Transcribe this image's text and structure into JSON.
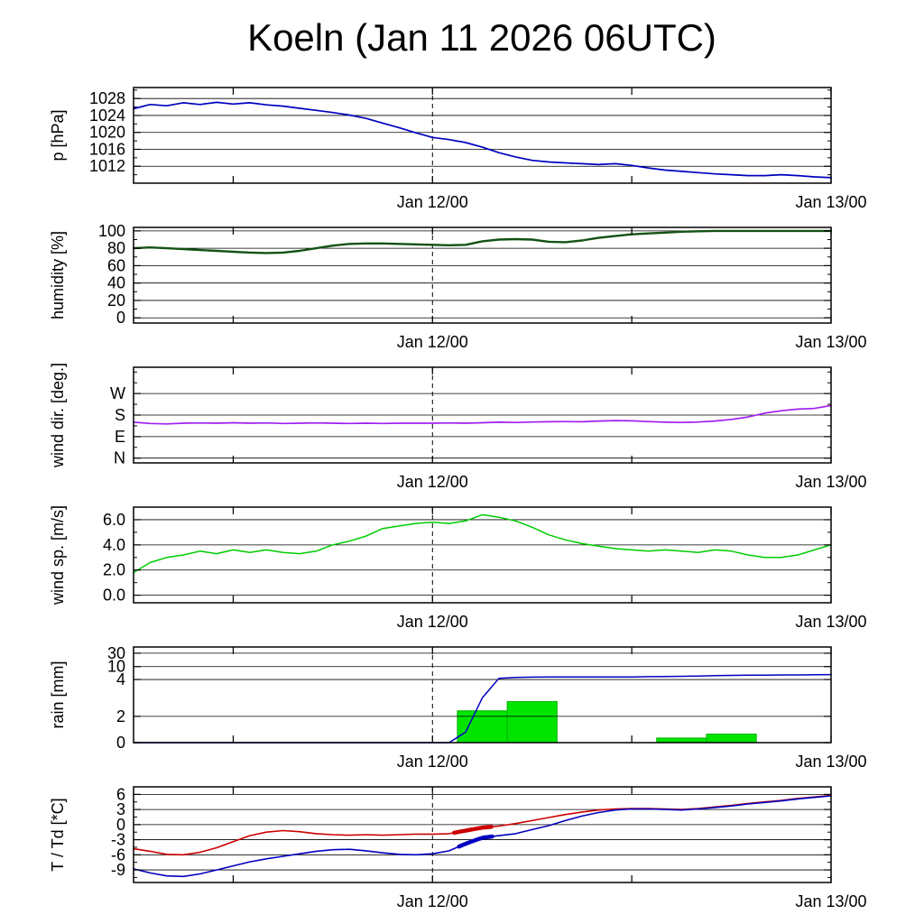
{
  "chart_data": {
    "type": "line",
    "title": "Koeln (Jan 11 2026 06UTC)",
    "x_axis": {
      "hours_total": 42,
      "major_tick_hours": [
        6,
        18,
        30,
        42
      ],
      "labels": [
        {
          "hour": 18,
          "text": "Jan 12/00"
        },
        {
          "hour": 42,
          "text": "Jan 13/00"
        }
      ],
      "dashed_line_hour": 18
    },
    "panels": [
      {
        "id": "pressure",
        "ylabel": "p [hPa]",
        "ymin": 1008,
        "ymax": 1030.6,
        "yticks": [
          {
            "value": 1012,
            "label": "1012"
          },
          {
            "value": 1016,
            "label": "1016"
          },
          {
            "value": 1020,
            "label": "1020"
          },
          {
            "value": 1024,
            "label": "1024"
          },
          {
            "value": 1028,
            "label": "1028"
          }
        ],
        "minor_ticks": [
          1010,
          1014,
          1018,
          1022,
          1026,
          1030
        ],
        "grid_values": [
          1012,
          1016,
          1020,
          1024,
          1028
        ],
        "series": [
          {
            "name": "pressure",
            "color": "#0000c0",
            "width": 1.7,
            "step_hours": 1,
            "values": [
              1025.6,
              1026.6,
              1026.3,
              1027.0,
              1026.6,
              1027.1,
              1026.7,
              1027.0,
              1026.5,
              1026.2,
              1025.7,
              1025.2,
              1024.7,
              1024.1,
              1023.3,
              1022.2,
              1021.1,
              1019.9,
              1018.8,
              1018.3,
              1017.6,
              1016.5,
              1015.2,
              1014.2,
              1013.4,
              1013.0,
              1012.8,
              1012.6,
              1012.4,
              1012.6,
              1012.2,
              1011.6,
              1011.1,
              1010.8,
              1010.5,
              1010.2,
              1010.0,
              1009.8,
              1009.8,
              1010.0,
              1009.8,
              1009.5,
              1009.3
            ]
          }
        ]
      },
      {
        "id": "humidity",
        "ylabel": "humidity [%]",
        "ymin": -6,
        "ymax": 104,
        "yticks": [
          {
            "value": 0,
            "label": "0"
          },
          {
            "value": 20,
            "label": "20"
          },
          {
            "value": 40,
            "label": "40"
          },
          {
            "value": 60,
            "label": "60"
          },
          {
            "value": 80,
            "label": "80"
          },
          {
            "value": 100,
            "label": "100"
          }
        ],
        "minor_ticks": [
          10,
          30,
          50,
          70,
          90
        ],
        "grid_values": [
          0,
          20,
          40,
          60,
          80,
          100
        ],
        "series": [
          {
            "name": "humidity",
            "color": "#145214",
            "width": 2.4,
            "step_hours": 1,
            "values": [
              80,
              81,
              80,
              79,
              78,
              77,
              76,
              75,
              74.5,
              75,
              77,
              80,
              83,
              85,
              85.5,
              85.5,
              85,
              84.5,
              84,
              83.5,
              84,
              88,
              90,
              90.5,
              90,
              87.5,
              87,
              89,
              92,
              94,
              96,
              97,
              98,
              99,
              99.5,
              100,
              100,
              100,
              100,
              100,
              100,
              100,
              100
            ]
          }
        ]
      },
      {
        "id": "wind-direction",
        "ylabel": "wind dir. [deg.]",
        "ymin": -20,
        "ymax": 380,
        "yticks": [
          {
            "value": 0,
            "label": "N"
          },
          {
            "value": 90,
            "label": "E"
          },
          {
            "value": 180,
            "label": "S"
          },
          {
            "value": 270,
            "label": "W"
          }
        ],
        "minor_ticks": [
          45,
          135,
          225,
          315,
          360
        ],
        "grid_values": [
          0,
          90,
          180,
          270
        ],
        "series": [
          {
            "name": "wind-direction",
            "color": "#a020f0",
            "width": 1.7,
            "step_hours": 1,
            "values": [
              150,
              145,
              143,
              146,
              147,
              146,
              148,
              146,
              147,
              145,
              146,
              147,
              146,
              145,
              146,
              145,
              146,
              146,
              146,
              147,
              146,
              148,
              150,
              149,
              151,
              152,
              153,
              152,
              155,
              157,
              156,
              153,
              150,
              149,
              151,
              155,
              162,
              172,
              188,
              198,
              205,
              208,
              220
            ]
          }
        ]
      },
      {
        "id": "wind-speed",
        "ylabel": "wind sp. [m/s]",
        "ymin": -0.6,
        "ymax": 7.0,
        "yticks": [
          {
            "value": 0,
            "label": "0.0"
          },
          {
            "value": 2,
            "label": "2.0"
          },
          {
            "value": 4,
            "label": "4.0"
          },
          {
            "value": 6,
            "label": "6.0"
          }
        ],
        "minor_ticks": [
          1,
          3,
          5
        ],
        "grid_values": [
          0,
          2,
          4,
          6
        ],
        "series": [
          {
            "name": "wind-speed",
            "color": "#00cc00",
            "width": 1.5,
            "step_hours": 1,
            "values": [
              1.8,
              2.6,
              3.0,
              3.2,
              3.5,
              3.3,
              3.6,
              3.4,
              3.6,
              3.4,
              3.3,
              3.5,
              4.0,
              4.3,
              4.7,
              5.3,
              5.5,
              5.7,
              5.8,
              5.7,
              5.9,
              6.4,
              6.2,
              5.9,
              5.4,
              4.8,
              4.4,
              4.1,
              3.9,
              3.7,
              3.6,
              3.5,
              3.6,
              3.5,
              3.4,
              3.6,
              3.5,
              3.2,
              3.0,
              3.0,
              3.2,
              3.6,
              4.0
            ]
          }
        ]
      },
      {
        "id": "rain",
        "ylabel": "rain [mm]",
        "yscale": {
          "type": "piecewise",
          "anchors": [
            [
              0,
              0
            ],
            [
              2,
              0.275
            ],
            [
              4,
              0.66
            ],
            [
              10,
              0.795
            ],
            [
              30,
              0.935
            ]
          ]
        },
        "yticks": [
          {
            "value": 0,
            "label": "0"
          },
          {
            "value": 2,
            "label": "2"
          },
          {
            "value": 4,
            "label": "4"
          },
          {
            "value": 10,
            "label": "10"
          },
          {
            "value": 30,
            "label": "30"
          }
        ],
        "minor_ticks": [],
        "grid_values": [
          2,
          4,
          10,
          30
        ],
        "bar_color": "#00e400",
        "bar_border": "#00b400",
        "bars": [
          {
            "start_h": 19.5,
            "end_h": 22.5,
            "value": 2.3
          },
          {
            "start_h": 22.5,
            "end_h": 25.5,
            "value": 2.8
          },
          {
            "start_h": 31.5,
            "end_h": 34.5,
            "value": 0.35
          },
          {
            "start_h": 34.5,
            "end_h": 37.5,
            "value": 0.65
          }
        ],
        "series": [
          {
            "name": "rain-accumulated",
            "color": "#0000c0",
            "width": 1.5,
            "step_hours": 1,
            "values": [
              0,
              0,
              0,
              0,
              0,
              0,
              0,
              0,
              0,
              0,
              0,
              0,
              0,
              0,
              0,
              0,
              0,
              0,
              0,
              0,
              0.8,
              3.0,
              4.5,
              5.0,
              5.1,
              5.2,
              5.2,
              5.2,
              5.2,
              5.2,
              5.2,
              5.3,
              5.4,
              5.5,
              5.6,
              5.8,
              5.9,
              6.0,
              6.0,
              6.1,
              6.1,
              6.2,
              6.3
            ]
          }
        ]
      },
      {
        "id": "temperature",
        "ylabel": "T / Td [*C]",
        "ymin": -11.5,
        "ymax": 7.5,
        "yticks": [
          {
            "value": -9,
            "label": "-9"
          },
          {
            "value": -6,
            "label": "-6"
          },
          {
            "value": -3,
            "label": "-3"
          },
          {
            "value": 0,
            "label": "0"
          },
          {
            "value": 3,
            "label": "3"
          },
          {
            "value": 6,
            "label": "6"
          }
        ],
        "minor_ticks": [
          -10.5,
          -7.5,
          -4.5,
          -1.5,
          1.5,
          4.5
        ],
        "grid_values": [
          -9,
          -6,
          -3,
          0,
          3,
          6
        ],
        "series": [
          {
            "name": "temperature",
            "color": "#cc0000",
            "width": 1.6,
            "step_hours": 1,
            "bold_ranges": [
              [
                19.3,
                21.6
              ]
            ],
            "values": [
              -4.8,
              -5.3,
              -5.9,
              -6.0,
              -5.5,
              -4.6,
              -3.4,
              -2.2,
              -1.5,
              -1.2,
              -1.4,
              -1.8,
              -2.0,
              -2.1,
              -2.0,
              -2.1,
              -2.0,
              -1.9,
              -1.9,
              -1.8,
              -1.2,
              -0.6,
              -0.3,
              0.2,
              0.8,
              1.4,
              2.0,
              2.5,
              2.9,
              3.1,
              3.2,
              3.2,
              3.1,
              3.0,
              3.2,
              3.5,
              3.8,
              4.2,
              4.5,
              4.8,
              5.2,
              5.5,
              5.8
            ]
          },
          {
            "name": "dewpoint",
            "color": "#0000c0",
            "width": 1.6,
            "step_hours": 1,
            "bold_ranges": [
              [
                19.6,
                21.8
              ]
            ],
            "values": [
              -8.8,
              -9.6,
              -10.2,
              -10.3,
              -9.8,
              -9.0,
              -8.2,
              -7.4,
              -6.8,
              -6.3,
              -5.8,
              -5.3,
              -5.0,
              -4.9,
              -5.2,
              -5.6,
              -5.9,
              -6.0,
              -5.8,
              -5.2,
              -3.8,
              -2.6,
              -2.2,
              -1.8,
              -1.0,
              -0.2,
              0.8,
              1.7,
              2.4,
              2.9,
              3.1,
              3.1,
              3.0,
              2.9,
              3.1,
              3.4,
              3.7,
              4.1,
              4.4,
              4.7,
              5.1,
              5.4,
              5.7
            ]
          }
        ]
      }
    ]
  }
}
